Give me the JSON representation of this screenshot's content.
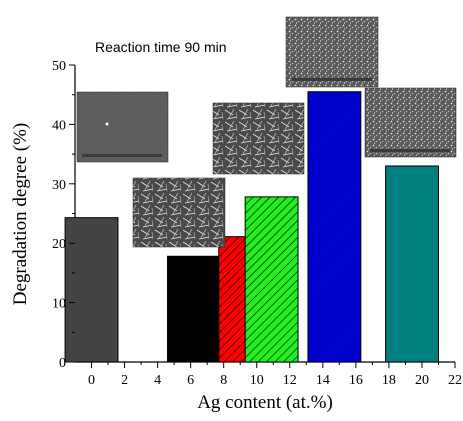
{
  "chart_data": {
    "type": "bar",
    "xlabel": "Ag content (at.%)",
    "ylabel": "Degradation degree (%)",
    "annotation": "Reaction time 90 min",
    "xlim": [
      -1,
      22
    ],
    "ylim": [
      0,
      50
    ],
    "xticks": [
      0,
      2,
      4,
      6,
      8,
      10,
      12,
      14,
      16,
      18,
      20,
      22
    ],
    "yticks": [
      0,
      10,
      20,
      30,
      40,
      50
    ],
    "bar_width": 3.2,
    "bars": [
      {
        "x": 0.0,
        "value": 24.3,
        "color": "#444444",
        "pattern": "solid"
      },
      {
        "x": 6.2,
        "value": 17.8,
        "color": "#000000",
        "pattern": "solid"
      },
      {
        "x": 9.3,
        "value": 21.1,
        "color": "#ff0000",
        "pattern": "hatch"
      },
      {
        "x": 10.9,
        "value": 27.8,
        "color": "#22ee22",
        "pattern": "hatch"
      },
      {
        "x": 14.7,
        "value": 45.5,
        "color": "#0000dd",
        "pattern": "hatch-fine"
      },
      {
        "x": 19.4,
        "value": 33.0,
        "color": "#007f7f",
        "pattern": "solid"
      }
    ],
    "grid": false,
    "legend": "none"
  },
  "sem_insets": [
    {
      "name": "sem-image-0",
      "texture": "smooth"
    },
    {
      "name": "sem-image-6",
      "texture": "needles"
    },
    {
      "name": "sem-image-10",
      "texture": "needles"
    },
    {
      "name": "sem-image-14",
      "texture": "grains"
    },
    {
      "name": "sem-image-20",
      "texture": "grains"
    }
  ]
}
